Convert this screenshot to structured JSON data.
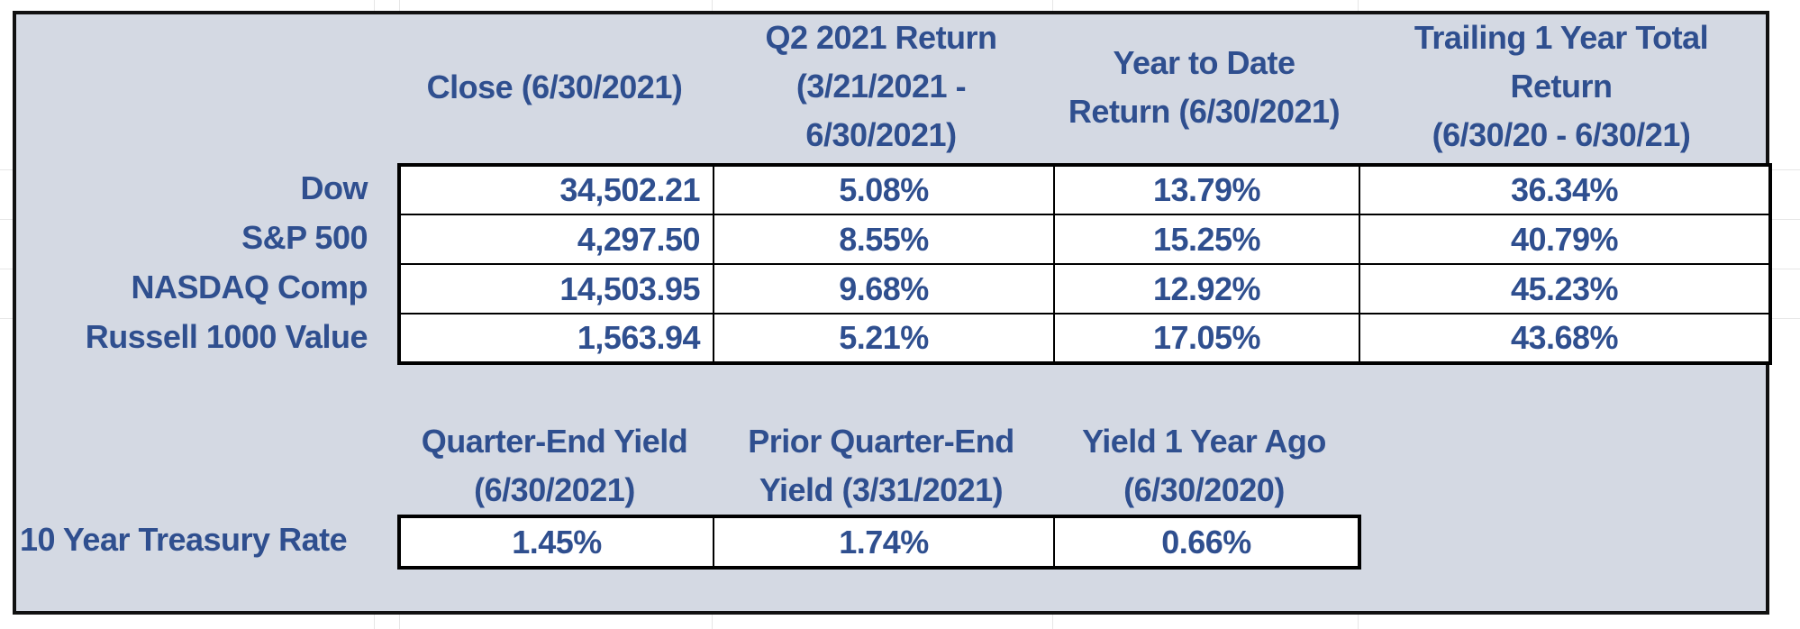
{
  "returns_table": {
    "headers": {
      "close": [
        "Close (6/30/2021)"
      ],
      "q2": [
        "Q2 2021 Return",
        "(3/21/2021 -",
        "6/30/2021)"
      ],
      "ytd": [
        "Year to Date",
        "Return (6/30/2021)"
      ],
      "trailing": [
        "Trailing 1 Year Total",
        "Return",
        "(6/30/20 - 6/30/21)"
      ]
    },
    "rows": [
      {
        "label": "Dow",
        "close": "34,502.21",
        "q2": "5.08%",
        "ytd": "13.79%",
        "trailing": "36.34%"
      },
      {
        "label": "S&P 500",
        "close": "4,297.50",
        "q2": "8.55%",
        "ytd": "15.25%",
        "trailing": "40.79%"
      },
      {
        "label": "NASDAQ Comp",
        "close": "14,503.95",
        "q2": "9.68%",
        "ytd": "12.92%",
        "trailing": "45.23%"
      },
      {
        "label": "Russell 1000 Value",
        "close": "1,563.94",
        "q2": "5.21%",
        "ytd": "17.05%",
        "trailing": "43.68%"
      }
    ]
  },
  "yield_table": {
    "headers": {
      "current": [
        "Quarter-End Yield",
        "(6/30/2021)"
      ],
      "prior": [
        "Prior Quarter-End",
        "Yield (3/31/2021)"
      ],
      "year_ago": [
        "Yield 1 Year Ago",
        "(6/30/2020)"
      ]
    },
    "row": {
      "label": "10 Year Treasury Rate",
      "current": "1.45%",
      "prior": "1.74%",
      "year_ago": "0.66%"
    }
  },
  "colors": {
    "panel_background": "#d4d9e3",
    "text": "#2f4f8f",
    "border": "#000000"
  }
}
